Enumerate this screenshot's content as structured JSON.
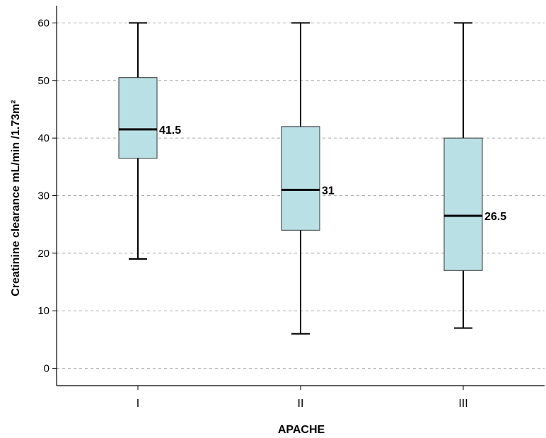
{
  "chart_data": {
    "type": "boxplot",
    "xlabel": "APACHE",
    "ylabel": "Creatinine clearance mL/min /1.73m²",
    "ylim": [
      -3,
      63
    ],
    "yticks": [
      0,
      10,
      20,
      30,
      40,
      50,
      60
    ],
    "grid": "horizontal-dashed",
    "box_color": "#b9e0e5",
    "categories": [
      "I",
      "II",
      "III"
    ],
    "boxes": [
      {
        "category": "I",
        "min": 19,
        "q1": 36.5,
        "median": 41.5,
        "q3": 50.5,
        "max": 60,
        "median_label": "41.5"
      },
      {
        "category": "II",
        "min": 6,
        "q1": 24,
        "median": 31,
        "q3": 42,
        "max": 60,
        "median_label": "31"
      },
      {
        "category": "III",
        "min": 7,
        "q1": 17,
        "median": 26.5,
        "q3": 40,
        "max": 60,
        "median_label": "26.5"
      }
    ]
  }
}
